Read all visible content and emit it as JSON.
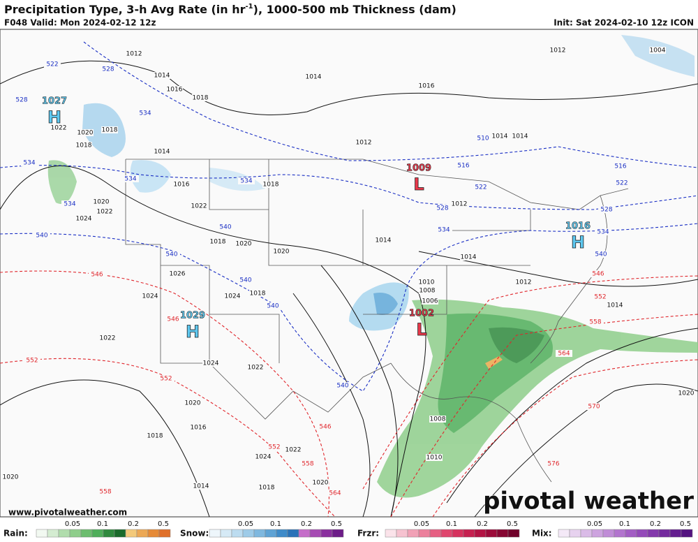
{
  "header": {
    "title": "Precipitation Type, 3-h Avg Rate (in hr",
    "title_superscript": "-1",
    "title_end": "), 1000-500 mb Thickness (dam)",
    "valid": "F048 Valid: Mon 2024-02-12 12z",
    "init": "Init: Sat 2024-02-10 12z ICON"
  },
  "pressure_centers": [
    {
      "value": "1027",
      "symbol": "H"
    },
    {
      "value": "1009",
      "symbol": "L"
    },
    {
      "value": "1016",
      "symbol": "H"
    },
    {
      "value": "1029",
      "symbol": "H"
    },
    {
      "value": "1002",
      "symbol": "L"
    }
  ],
  "isobar_labels": [
    "1012",
    "1014",
    "1016",
    "1018",
    "1018",
    "1020",
    "1022",
    "1018",
    "1014",
    "1016",
    "1018",
    "1022",
    "1020",
    "1022",
    "1024",
    "1018",
    "1020",
    "1020",
    "1026",
    "1024",
    "1024",
    "1018",
    "1022",
    "1024",
    "1022",
    "1020",
    "1016",
    "1018",
    "1024",
    "1022",
    "1020",
    "1014",
    "1018",
    "1020",
    "1014",
    "1016",
    "1012",
    "1014",
    "1014",
    "1012",
    "1012",
    "1014",
    "1014",
    "1010",
    "1008",
    "1006",
    "1012",
    "1014",
    "1008",
    "1010",
    "1020",
    "1004"
  ],
  "thickness_labels_cold": [
    "522",
    "528",
    "528",
    "534",
    "534",
    "534",
    "534",
    "540",
    "534",
    "540",
    "540",
    "540",
    "540",
    "540",
    "510",
    "516",
    "522",
    "528",
    "534",
    "516",
    "522",
    "528",
    "534",
    "540"
  ],
  "thickness_labels_warm": [
    "546",
    "546",
    "552",
    "552",
    "546",
    "552",
    "558",
    "564",
    "558",
    "546",
    "552",
    "558",
    "564",
    "570",
    "576"
  ],
  "footer": {
    "url": "www.pivotalweather.com",
    "brand": "pivotal weather"
  },
  "legend": [
    {
      "name": "Rain:",
      "ticks": [
        "0.05",
        "0.1",
        "0.2",
        "0.5"
      ]
    },
    {
      "name": "Snow:",
      "ticks": [
        "0.05",
        "0.1",
        "0.2",
        "0.5"
      ]
    },
    {
      "name": "Frzr:",
      "ticks": [
        "0.05",
        "0.1",
        "0.2",
        "0.5"
      ]
    },
    {
      "name": "Mix:",
      "ticks": [
        "0.05",
        "0.1",
        "0.2",
        "0.5"
      ]
    }
  ]
}
